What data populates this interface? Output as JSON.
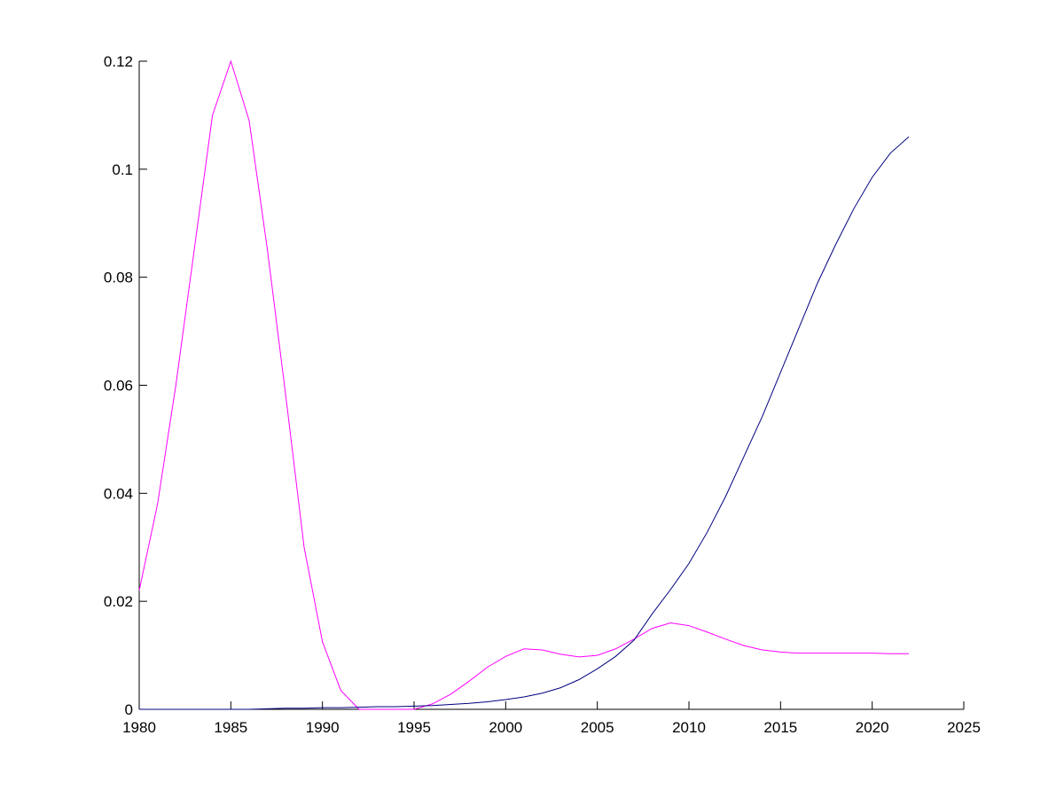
{
  "chart_data": {
    "type": "line",
    "x": [
      1980,
      1981,
      1982,
      1983,
      1984,
      1985,
      1986,
      1987,
      1988,
      1989,
      1990,
      1991,
      1992,
      1993,
      1994,
      1995,
      1996,
      1997,
      1998,
      1999,
      2000,
      2001,
      2002,
      2003,
      2004,
      2005,
      2006,
      2007,
      2008,
      2009,
      2010,
      2011,
      2012,
      2013,
      2014,
      2015,
      2016,
      2017,
      2018,
      2019,
      2020,
      2021,
      2022
    ],
    "series": [
      {
        "color": "#ff00ff",
        "values": [
          0.022,
          0.038,
          0.06,
          0.085,
          0.11,
          0.12,
          0.109,
          0.085,
          0.058,
          0.03,
          0.0125,
          0.0035,
          0,
          0,
          0,
          0,
          0.001,
          0.0028,
          0.0052,
          0.0078,
          0.0098,
          0.0112,
          0.011,
          0.0102,
          0.0097,
          0.01,
          0.0112,
          0.013,
          0.015,
          0.016,
          0.0155,
          0.0143,
          0.013,
          0.0118,
          0.011,
          0.0106,
          0.0104,
          0.0104,
          0.0104,
          0.0104,
          0.0104,
          0.0103,
          0.0103
        ]
      },
      {
        "color": "#000080",
        "values": [
          0,
          0,
          0,
          0,
          0,
          0,
          0,
          0.0001,
          0.0002,
          0.0002,
          0.0003,
          0.0003,
          0.0004,
          0.0005,
          0.0005,
          0.0006,
          0.0007,
          0.0009,
          0.0011,
          0.0014,
          0.0018,
          0.0023,
          0.003,
          0.004,
          0.0055,
          0.0075,
          0.0098,
          0.0128,
          0.0177,
          0.0222,
          0.027,
          0.0328,
          0.0394,
          0.0468,
          0.0542,
          0.0624,
          0.0706,
          0.0788,
          0.086,
          0.0927,
          0.0985,
          0.103,
          0.106
        ]
      }
    ],
    "xlim": [
      1980,
      2025
    ],
    "xticks": [
      1980,
      1985,
      1990,
      1995,
      2000,
      2005,
      2010,
      2015,
      2020,
      2025
    ],
    "ylim": [
      0,
      0.12
    ],
    "yticks": [
      0,
      0.02,
      0.04,
      0.06,
      0.08,
      0.1,
      0.12
    ]
  }
}
